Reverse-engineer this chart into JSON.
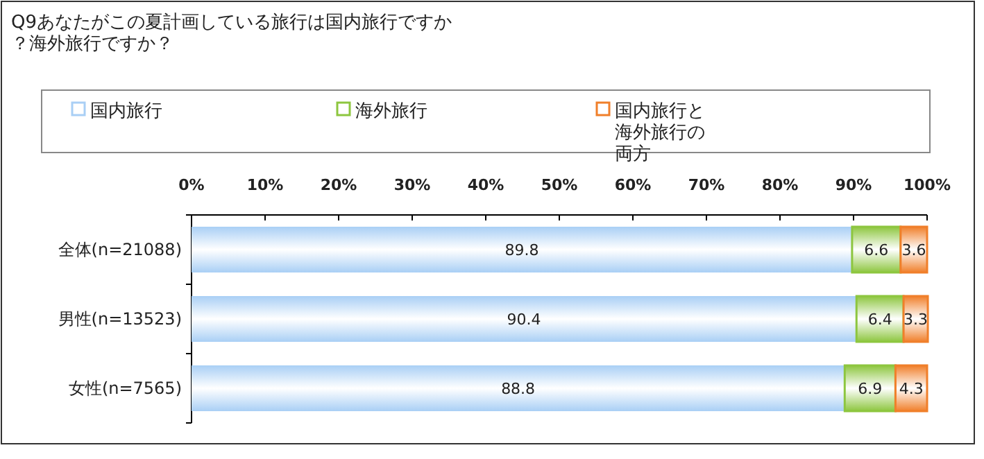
{
  "chart_data": {
    "type": "bar",
    "orientation": "horizontal",
    "stacked": true,
    "title": "Q9あなたがこの夏計画している旅行は国内旅行ですか？海外旅行ですか？",
    "categories": [
      "全体(n=21088)",
      "男性(n=13523)",
      "女性(n=7565)"
    ],
    "series": [
      {
        "name": "国内旅行",
        "color": "#a9cff5",
        "values": [
          89.8,
          90.4,
          88.8
        ]
      },
      {
        "name": "海外旅行",
        "color": "#8dc63f",
        "values": [
          6.6,
          6.4,
          6.9
        ]
      },
      {
        "name": "国内旅行と海外旅行の両方",
        "color": "#f07f2a",
        "values": [
          3.6,
          3.3,
          4.3
        ]
      }
    ],
    "xlim": [
      0,
      100
    ],
    "xticks": [
      {
        "value": 0,
        "label": "0%"
      },
      {
        "value": 10,
        "label": "10%"
      },
      {
        "value": 20,
        "label": "20%"
      },
      {
        "value": 30,
        "label": "30%"
      },
      {
        "value": 40,
        "label": "40%"
      },
      {
        "value": 50,
        "label": "50%"
      },
      {
        "value": 60,
        "label": "60%"
      },
      {
        "value": 70,
        "label": "70%"
      },
      {
        "value": 80,
        "label": "80%"
      },
      {
        "value": 90,
        "label": "90%"
      },
      {
        "value": 100,
        "label": "100%"
      }
    ],
    "data_labels": true,
    "legend": "top",
    "grid": false
  }
}
